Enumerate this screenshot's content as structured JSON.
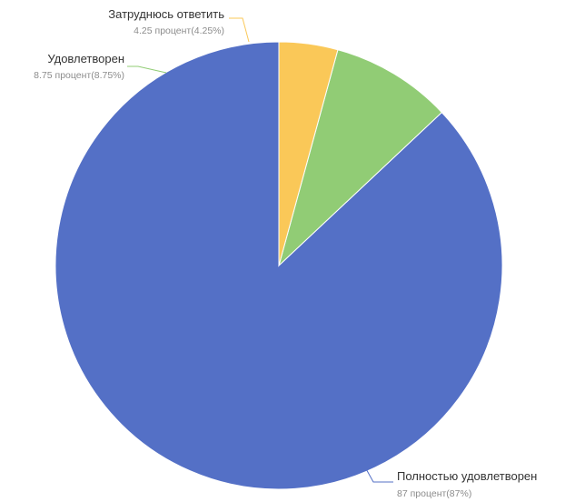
{
  "chart_data": {
    "type": "pie",
    "title": "",
    "start_angle_deg": 0,
    "direction": "counterclockwise",
    "slices": [
      {
        "name": "Полностью удовлетворен",
        "value": 87,
        "value_text": "87 процент(87%)",
        "color": "#5470c6"
      },
      {
        "name": "Удовлетворен",
        "value": 8.75,
        "value_text": "8.75 процент(8.75%)",
        "color": "#91cc75"
      },
      {
        "name": "Затруднюсь ответить",
        "value": 4.25,
        "value_text": "4.25 процент(4.25%)",
        "color": "#fac858"
      }
    ]
  }
}
